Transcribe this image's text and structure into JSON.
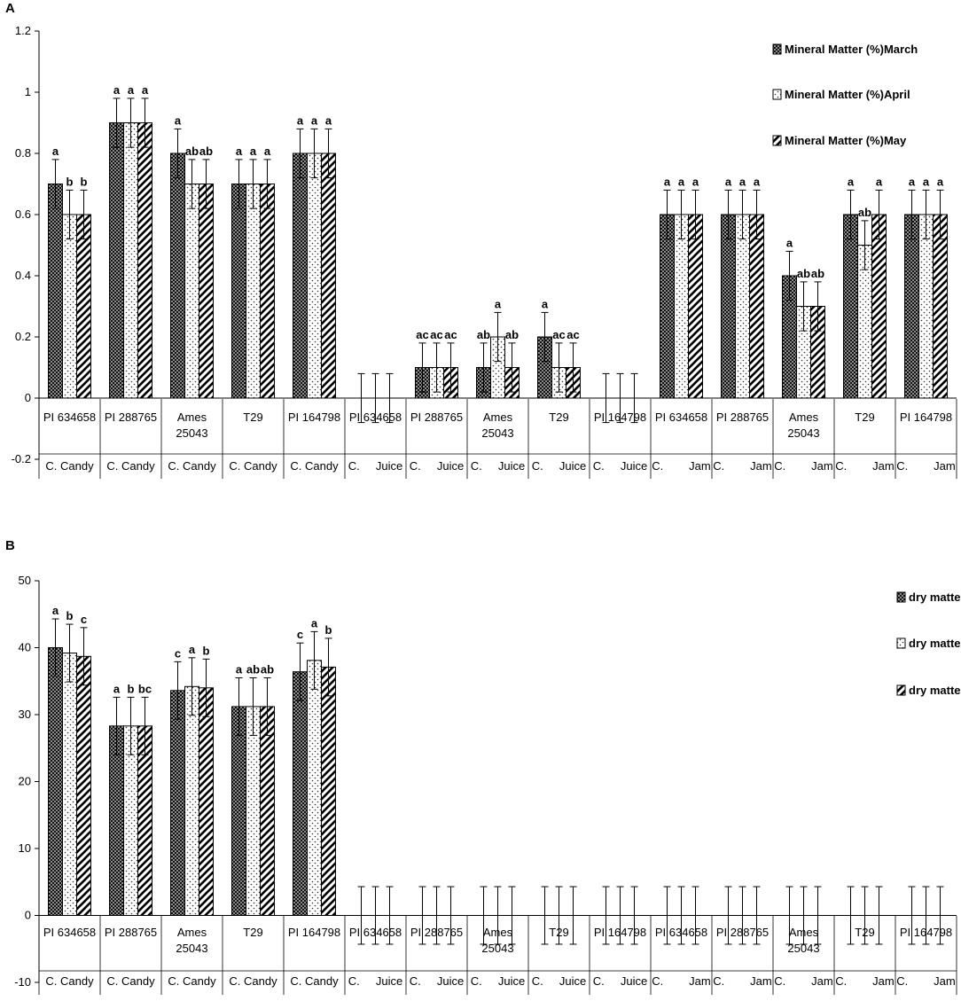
{
  "chart_data": [
    {
      "type": "bar",
      "panel_label": "A",
      "ylim": [
        -0.2,
        1.2
      ],
      "yticks": [
        "-0.2",
        "0",
        "0.2",
        "0.4",
        "0.6",
        "0.8",
        "1",
        "1.2"
      ],
      "categories": [
        "PI 634658",
        "PI 288765",
        "Ames 25043",
        "T29",
        "PI 164798",
        "PI 634658",
        "PI 288765",
        "Ames 25043",
        "T29",
        "PI 164798",
        "PI 634658",
        "PI 288765",
        "Ames 25043",
        "T29",
        "PI 164798"
      ],
      "groups": [
        "C. Candy",
        "C. Candy",
        "C. Candy",
        "C. Candy",
        "C. Candy",
        "C.     Juice",
        "C.     Juice",
        "C.     Juice",
        "C.     Juice",
        "C.     Juice",
        "C.        Jam",
        "C.        Jam",
        "C.        Jam",
        "C.        Jam",
        "C.        Jam"
      ],
      "series": [
        {
          "name": "Mineral Matter (%)March",
          "pattern": "crosshatch",
          "values": [
            0.7,
            0.9,
            0.8,
            0.7,
            0.8,
            0,
            0.1,
            0.1,
            0.2,
            0,
            0.6,
            0.6,
            0.4,
            0.6,
            0.6
          ],
          "errors": [
            0.08,
            0.08,
            0.08,
            0.08,
            0.08,
            0.08,
            0.08,
            0.08,
            0.08,
            0.08,
            0.08,
            0.08,
            0.08,
            0.08,
            0.08
          ],
          "labels": [
            "a",
            "a",
            "a",
            "a",
            "a",
            "",
            "ac",
            "ab",
            "a",
            "",
            "a",
            "a",
            "a",
            "a",
            "a"
          ]
        },
        {
          "name": "Mineral Matter (%)April",
          "pattern": "dots",
          "values": [
            0.6,
            0.9,
            0.7,
            0.7,
            0.8,
            0,
            0.1,
            0.2,
            0.1,
            0,
            0.6,
            0.6,
            0.3,
            0.5,
            0.6
          ],
          "errors": [
            0.08,
            0.08,
            0.08,
            0.08,
            0.08,
            0.08,
            0.08,
            0.08,
            0.08,
            0.08,
            0.08,
            0.08,
            0.08,
            0.08,
            0.08
          ],
          "labels": [
            "b",
            "a",
            "ab",
            "a",
            "a",
            "",
            "ac",
            "a",
            "ac",
            "",
            "a",
            "a",
            "ab",
            "ab",
            "a"
          ]
        },
        {
          "name": "Mineral Matter (%)May",
          "pattern": "diagonal",
          "values": [
            0.6,
            0.9,
            0.7,
            0.7,
            0.8,
            0,
            0.1,
            0.1,
            0.1,
            0,
            0.6,
            0.6,
            0.3,
            0.6,
            0.6
          ],
          "errors": [
            0.08,
            0.08,
            0.08,
            0.08,
            0.08,
            0.08,
            0.08,
            0.08,
            0.08,
            0.08,
            0.08,
            0.08,
            0.08,
            0.08,
            0.08
          ],
          "labels": [
            "b",
            "a",
            "ab",
            "a",
            "a",
            "",
            "ac",
            "ab",
            "ac",
            "",
            "a",
            "a",
            "ab",
            "a",
            "a"
          ]
        }
      ]
    },
    {
      "type": "bar",
      "panel_label": "B",
      "ylim": [
        -10,
        50
      ],
      "yticks": [
        "-10",
        "0",
        "10",
        "20",
        "30",
        "40",
        "50"
      ],
      "categories": [
        "PI 634658",
        "PI 288765",
        "Ames 25043",
        "T29",
        "PI 164798",
        "PI 634658",
        "PI 288765",
        "Ames 25043",
        "T29",
        "PI 164798",
        "PI 634658",
        "PI 288765",
        "Ames 25043",
        "T29",
        "PI 164798"
      ],
      "groups": [
        "C. Candy",
        "C. Candy",
        "C. Candy",
        "C. Candy",
        "C. Candy",
        "C.     Juice",
        "C.     Juice",
        "C.     Juice",
        "C.     Juice",
        "C.     Juice",
        "C.        Jam",
        "C.        Jam",
        "C.        Jam",
        "C.        Jam",
        "C.        Jam"
      ],
      "series": [
        {
          "name": "dry matter (%) March",
          "pattern": "crosshatch",
          "values": [
            40,
            28.3,
            33.6,
            31.2,
            36.4,
            0,
            0,
            0,
            0,
            0,
            0,
            0,
            0,
            0,
            0
          ],
          "errors": [
            4.3,
            4.3,
            4.3,
            4.3,
            4.3,
            4.3,
            4.3,
            4.3,
            4.3,
            4.3,
            4.3,
            4.3,
            4.3,
            4.3,
            4.3
          ],
          "labels": [
            "a",
            "a",
            "c",
            "a",
            "c",
            "",
            "",
            "",
            "",
            "",
            "",
            "",
            "",
            "",
            ""
          ]
        },
        {
          "name": "dry matter (%) April",
          "pattern": "dots",
          "values": [
            39.2,
            28.3,
            34.2,
            31.2,
            38.1,
            0,
            0,
            0,
            0,
            0,
            0,
            0,
            0,
            0,
            0
          ],
          "errors": [
            4.3,
            4.3,
            4.3,
            4.3,
            4.3,
            4.3,
            4.3,
            4.3,
            4.3,
            4.3,
            4.3,
            4.3,
            4.3,
            4.3,
            4.3
          ],
          "labels": [
            "b",
            "b",
            "a",
            "ab",
            "a",
            "",
            "",
            "",
            "",
            "",
            "",
            "",
            "",
            "",
            ""
          ]
        },
        {
          "name": "dry matter (%) May",
          "pattern": "diagonal",
          "values": [
            38.7,
            28.3,
            34,
            31.2,
            37.1,
            0,
            0,
            0,
            0,
            0,
            0,
            0,
            0,
            0,
            0
          ],
          "errors": [
            4.3,
            4.3,
            4.3,
            4.3,
            4.3,
            4.3,
            4.3,
            4.3,
            4.3,
            4.3,
            4.3,
            4.3,
            4.3,
            4.3,
            4.3
          ],
          "labels": [
            "c",
            "bc",
            "b",
            "ab",
            "b",
            "",
            "",
            "",
            "",
            "",
            "",
            "",
            "",
            "",
            ""
          ]
        }
      ]
    }
  ]
}
